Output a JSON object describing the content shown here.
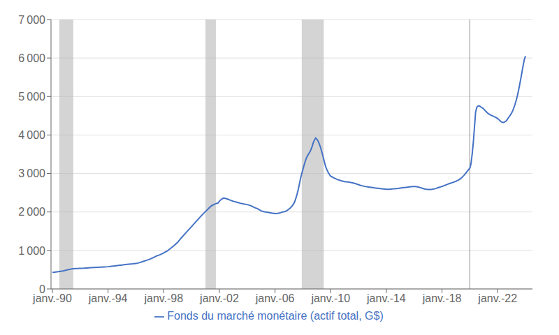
{
  "chart_data": {
    "type": "line",
    "title": "",
    "legend": "bottom",
    "grid": true,
    "xlim": [
      1989.9,
      2024.5
    ],
    "xticks": [
      {
        "value": 1990,
        "label": "janv.-90"
      },
      {
        "value": 1994,
        "label": "janv.-94"
      },
      {
        "value": 1998,
        "label": "janv.-98"
      },
      {
        "value": 2002,
        "label": "janv.-02"
      },
      {
        "value": 2006,
        "label": "janv.-06"
      },
      {
        "value": 2010,
        "label": "janv.-10"
      },
      {
        "value": 2014,
        "label": "janv.-14"
      },
      {
        "value": 2018,
        "label": "janv.-18"
      },
      {
        "value": 2022,
        "label": "janv.-22"
      }
    ],
    "ylim": [
      0,
      7000
    ],
    "yticks": [
      0,
      {
        "value": 1000,
        "label": "1 000"
      },
      {
        "value": 2000,
        "label": "2 000"
      },
      {
        "value": 3000,
        "label": "3 000"
      },
      {
        "value": 4000,
        "label": "4 000"
      },
      {
        "value": 5000,
        "label": "5 000"
      },
      {
        "value": 6000,
        "label": "6 000"
      },
      {
        "value": 7000,
        "label": "7 000"
      }
    ],
    "recession_bands": [
      [
        1990.5,
        1991.5
      ],
      [
        2001.0,
        2001.75
      ],
      [
        2007.92,
        2009.5
      ]
    ],
    "vline_x": 2020.0,
    "x": [
      1990.0,
      1990.083,
      1990.167,
      1990.25,
      1990.333,
      1990.417,
      1990.5,
      1990.583,
      1990.667,
      1990.75,
      1990.833,
      1990.917,
      1991.0,
      1991.083,
      1991.167,
      1991.25,
      1991.333,
      1991.417,
      1991.5,
      1991.583,
      1991.667,
      1991.75,
      1991.833,
      1991.917,
      1992.0,
      1992.25,
      1992.5,
      1992.75,
      1993.0,
      1993.25,
      1993.5,
      1993.75,
      1994.0,
      1994.25,
      1994.5,
      1994.75,
      1995.0,
      1995.25,
      1995.5,
      1995.75,
      1996.0,
      1996.25,
      1996.5,
      1996.75,
      1997.0,
      1997.25,
      1997.5,
      1997.75,
      1998.0,
      1998.25,
      1998.5,
      1998.75,
      1999.0,
      1999.25,
      1999.5,
      1999.75,
      2000.0,
      2000.25,
      2000.5,
      2000.75,
      2001.0,
      2001.083,
      2001.167,
      2001.25,
      2001.333,
      2001.417,
      2001.5,
      2001.583,
      2001.667,
      2001.75,
      2001.833,
      2001.917,
      2002.0,
      2002.083,
      2002.167,
      2002.25,
      2002.333,
      2002.417,
      2002.5,
      2002.583,
      2002.667,
      2002.75,
      2002.833,
      2002.917,
      2003.0,
      2003.25,
      2003.5,
      2003.75,
      2004.0,
      2004.25,
      2004.5,
      2004.75,
      2005.0,
      2005.25,
      2005.5,
      2005.75,
      2006.0,
      2006.083,
      2006.167,
      2006.25,
      2006.333,
      2006.417,
      2006.5,
      2006.583,
      2006.667,
      2006.75,
      2006.833,
      2006.917,
      2007.0,
      2007.083,
      2007.167,
      2007.25,
      2007.333,
      2007.417,
      2007.5,
      2007.583,
      2007.667,
      2007.75,
      2007.833,
      2007.917,
      2008.0,
      2008.083,
      2008.167,
      2008.25,
      2008.333,
      2008.417,
      2008.5,
      2008.583,
      2008.667,
      2008.75,
      2008.833,
      2008.917,
      2009.0,
      2009.083,
      2009.167,
      2009.25,
      2009.333,
      2009.417,
      2009.5,
      2009.583,
      2009.667,
      2009.75,
      2009.833,
      2009.917,
      2010.0,
      2010.25,
      2010.5,
      2010.75,
      2011.0,
      2011.083,
      2011.167,
      2011.25,
      2011.333,
      2011.417,
      2011.5,
      2011.583,
      2011.667,
      2011.75,
      2011.833,
      2011.917,
      2012.0,
      2012.083,
      2012.167,
      2012.25,
      2012.333,
      2012.417,
      2012.5,
      2012.583,
      2012.667,
      2012.75,
      2012.833,
      2012.917,
      2013.0,
      2013.083,
      2013.167,
      2013.25,
      2013.333,
      2013.417,
      2013.5,
      2013.583,
      2013.667,
      2013.75,
      2013.833,
      2013.917,
      2014.0,
      2014.083,
      2014.167,
      2014.25,
      2014.333,
      2014.417,
      2014.5,
      2014.583,
      2014.667,
      2014.75,
      2014.833,
      2014.917,
      2015.0,
      2015.083,
      2015.167,
      2015.25,
      2015.333,
      2015.417,
      2015.5,
      2015.583,
      2015.667,
      2015.75,
      2015.833,
      2015.917,
      2016.0,
      2016.083,
      2016.167,
      2016.25,
      2016.333,
      2016.417,
      2016.5,
      2016.583,
      2016.667,
      2016.75,
      2016.833,
      2016.917,
      2017.0,
      2017.083,
      2017.167,
      2017.25,
      2017.333,
      2017.417,
      2017.5,
      2017.583,
      2017.667,
      2017.75,
      2017.833,
      2017.917,
      2018.0,
      2018.083,
      2018.167,
      2018.25,
      2018.333,
      2018.417,
      2018.5,
      2018.583,
      2018.667,
      2018.75,
      2018.833,
      2018.917,
      2019.0,
      2019.083,
      2019.167,
      2019.25,
      2019.333,
      2019.417,
      2019.5,
      2019.583,
      2019.667,
      2019.75,
      2019.833,
      2019.917,
      2020.0,
      2020.083,
      2020.167,
      2020.25,
      2020.333,
      2020.417,
      2020.5,
      2020.583,
      2020.667,
      2020.75,
      2020.833,
      2020.917,
      2021.0,
      2021.083,
      2021.167,
      2021.25,
      2021.333,
      2021.417,
      2021.5,
      2021.583,
      2021.667,
      2021.75,
      2021.833,
      2021.917,
      2022.0,
      2022.083,
      2022.167,
      2022.25,
      2022.333,
      2022.417,
      2022.5,
      2022.583,
      2022.667,
      2022.75,
      2022.833,
      2022.917,
      2023.0,
      2023.083,
      2023.167,
      2023.25,
      2023.333,
      2023.417,
      2023.5,
      2023.583,
      2023.667,
      2023.75,
      2023.833,
      2023.917,
      2024.0
    ],
    "series": [
      {
        "name": "Fonds du marché monétaire (actif total, G$)",
        "color": "#4472C4",
        "values": [
          430,
          432,
          436,
          440,
          444,
          448,
          453,
          458,
          463,
          468,
          474,
          480,
          488,
          496,
          503,
          510,
          515,
          520,
          524,
          527,
          529,
          530,
          532,
          534,
          536,
          540,
          546,
          552,
          558,
          563,
          568,
          572,
          578,
          588,
          600,
          612,
          623,
          634,
          645,
          651,
          660,
          682,
          712,
          742,
          772,
          815,
          858,
          892,
          935,
          985,
          1055,
          1130,
          1210,
          1320,
          1420,
          1520,
          1620,
          1720,
          1820,
          1920,
          2010,
          2040,
          2070,
          2100,
          2130,
          2155,
          2175,
          2190,
          2205,
          2215,
          2225,
          2235,
          2280,
          2310,
          2335,
          2355,
          2360,
          2355,
          2345,
          2335,
          2325,
          2310,
          2300,
          2290,
          2278,
          2252,
          2228,
          2208,
          2192,
          2165,
          2118,
          2082,
          2028,
          2005,
          1992,
          1972,
          1958,
          1960,
          1963,
          1968,
          1975,
          1984,
          1994,
          2002,
          2010,
          2018,
          2030,
          2050,
          2075,
          2100,
          2130,
          2165,
          2210,
          2270,
          2360,
          2460,
          2580,
          2720,
          2870,
          2990,
          3100,
          3210,
          3310,
          3400,
          3460,
          3510,
          3560,
          3620,
          3700,
          3800,
          3870,
          3920,
          3890,
          3850,
          3780,
          3700,
          3600,
          3490,
          3370,
          3250,
          3150,
          3080,
          3020,
          2970,
          2930,
          2880,
          2840,
          2810,
          2790,
          2785,
          2782,
          2778,
          2773,
          2768,
          2762,
          2755,
          2748,
          2740,
          2730,
          2720,
          2708,
          2698,
          2690,
          2682,
          2675,
          2668,
          2662,
          2657,
          2652,
          2648,
          2644,
          2640,
          2636,
          2631,
          2626,
          2622,
          2618,
          2614,
          2610,
          2606,
          2602,
          2598,
          2596,
          2594,
          2592,
          2591,
          2591,
          2592,
          2594,
          2597,
          2600,
          2603,
          2606,
          2609,
          2612,
          2616,
          2620,
          2624,
          2628,
          2632,
          2636,
          2640,
          2644,
          2648,
          2652,
          2656,
          2658,
          2660,
          2662,
          2660,
          2656,
          2651,
          2644,
          2636,
          2626,
          2616,
          2607,
          2598,
          2592,
          2588,
          2585,
          2584,
          2585,
          2588,
          2592,
          2598,
          2605,
          2614,
          2624,
          2634,
          2644,
          2654,
          2665,
          2675,
          2686,
          2698,
          2710,
          2722,
          2733,
          2744,
          2754,
          2764,
          2775,
          2786,
          2798,
          2812,
          2828,
          2846,
          2868,
          2893,
          2922,
          2955,
          2990,
          3028,
          3065,
          3102,
          3140,
          3250,
          3500,
          3800,
          4200,
          4600,
          4720,
          4750,
          4760,
          4740,
          4720,
          4700,
          4675,
          4640,
          4610,
          4580,
          4555,
          4535,
          4518,
          4505,
          4492,
          4478,
          4462,
          4445,
          4428,
          4400,
          4372,
          4345,
          4330,
          4325,
          4335,
          4355,
          4390,
          4435,
          4480,
          4520,
          4570,
          4630,
          4710,
          4800,
          4900,
          5020,
          5160,
          5310,
          5470,
          5640,
          5810,
          5960,
          6050
        ]
      }
    ]
  }
}
